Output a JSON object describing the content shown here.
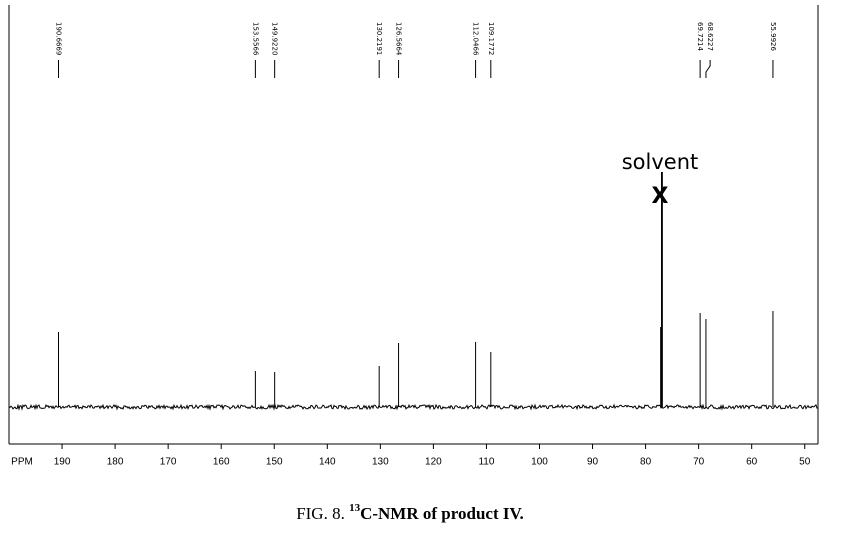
{
  "chart_data": {
    "type": "spectrum",
    "caption": {
      "prefix": "FIG. 8.",
      "superscript": "13",
      "text": "C-NMR of product IV."
    },
    "xlabel": "PPM",
    "xlim": [
      200,
      47.5
    ],
    "xticks": [
      190,
      180,
      170,
      160,
      150,
      140,
      130,
      120,
      110,
      100,
      90,
      80,
      70,
      60,
      50
    ],
    "ylim": [
      0,
      250
    ],
    "color": "#000000",
    "peak_labels": [
      "190.6669",
      "153.5566",
      "149.9220",
      "130.2191",
      "126.5664",
      "112.0466",
      "109.1772",
      "69.7214",
      "68.6227",
      "55.9926"
    ],
    "x": [
      190.6669,
      153.5566,
      149.922,
      130.2191,
      126.5664,
      112.0466,
      109.1772,
      69.7214,
      68.6227,
      55.9926
    ],
    "values": [
      75,
      36,
      35,
      41,
      64,
      65,
      55,
      94,
      88,
      96
    ],
    "solvent": {
      "label": "solvent",
      "marker": "X",
      "x": [
        77.16,
        77.0,
        76.84
      ],
      "values": [
        80,
        235,
        235
      ]
    }
  }
}
